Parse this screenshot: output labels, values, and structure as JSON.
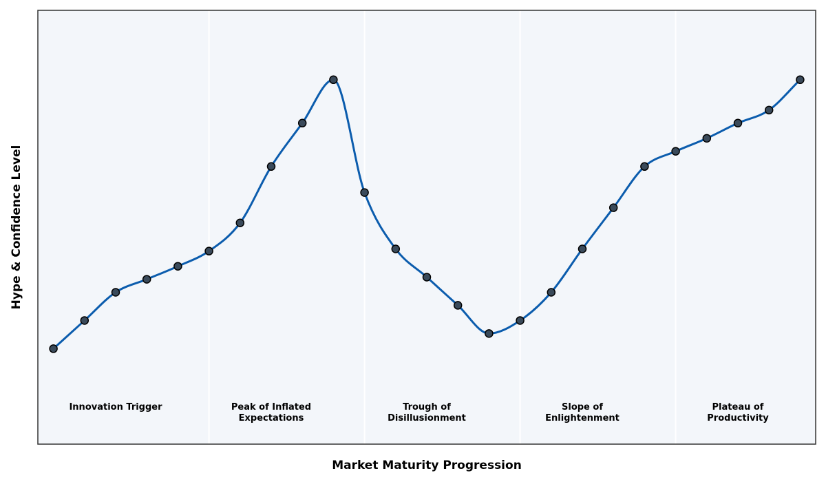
{
  "chart_data": {
    "type": "line",
    "title": "",
    "xlabel": "Market Maturity Progression",
    "ylabel": "Hype & Confidence Level",
    "xlim": [
      -0.5,
      24.5
    ],
    "ylim": [
      0,
      100
    ],
    "grid": false,
    "x_ticks": [],
    "y_ticks": [],
    "background_color": "#f3f6fa",
    "line_color": "#0b5cad",
    "marker_color": "#3a4a5a",
    "marker_edge_color": "#000000",
    "phase_divider_color": "#ffffff",
    "phase_dividers": [
      5,
      10,
      15,
      20
    ],
    "phases": [
      {
        "name": "Innovation Trigger",
        "lines": [
          "Innovation Trigger"
        ],
        "x_center": 2
      },
      {
        "name": "Peak of Inflated Expectations",
        "lines": [
          "Peak of Inflated",
          "Expectations"
        ],
        "x_center": 7
      },
      {
        "name": "Trough of Disillusionment",
        "lines": [
          "Trough of",
          "Disillusionment"
        ],
        "x_center": 12
      },
      {
        "name": "Slope of Enlightenment",
        "lines": [
          "Slope of",
          "Enlightenment"
        ],
        "x_center": 17
      },
      {
        "name": "Plateau of Productivity",
        "lines": [
          "Plateau of",
          "Productivity"
        ],
        "x_center": 22
      }
    ],
    "series": [
      {
        "x": [
          0,
          1,
          2,
          3,
          4,
          5,
          6,
          7,
          8,
          9,
          10,
          11,
          12,
          13,
          14,
          15,
          16,
          17,
          18,
          19,
          20,
          21,
          22,
          23,
          24
        ],
        "values": [
          22,
          28.5,
          35,
          38,
          41,
          44.5,
          51,
          64,
          74,
          84,
          58,
          45,
          38.5,
          32,
          25.5,
          28.5,
          35,
          45,
          54.5,
          64,
          67.5,
          70.5,
          74,
          77,
          84
        ]
      }
    ]
  }
}
